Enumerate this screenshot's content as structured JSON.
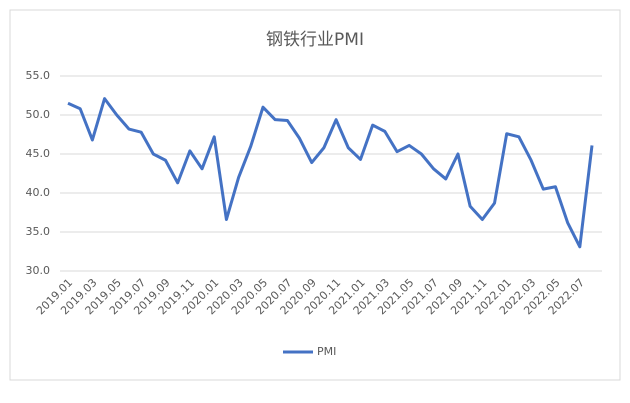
{
  "chart_data": {
    "type": "line",
    "title": "钢铁行业PMI",
    "categories": [
      "2019.01",
      null,
      "2019.03",
      null,
      "2019.05",
      null,
      "2019.07",
      null,
      "2019.09",
      null,
      "2019.11",
      null,
      "2020.01",
      null,
      "2020.03",
      null,
      "2020.05",
      null,
      "2020.07",
      null,
      "2020.09",
      null,
      "2020.11",
      null,
      "2021.01",
      null,
      "2021.03",
      null,
      "2021.05",
      null,
      "2021.07",
      null,
      "2021.09",
      null,
      "2021.11",
      null,
      "2022.01",
      null,
      "2022.03",
      null,
      "2022.05",
      null,
      "2022.07",
      null
    ],
    "series": [
      {
        "name": "PMI",
        "color": "#4472c4",
        "values": [
          51.5,
          50.8,
          46.8,
          52.1,
          50.0,
          48.2,
          47.8,
          45.0,
          44.2,
          41.3,
          45.4,
          43.1,
          47.2,
          36.6,
          42.0,
          46.0,
          51.0,
          49.4,
          49.3,
          47.0,
          43.9,
          45.8,
          49.4,
          45.8,
          44.3,
          48.7,
          47.9,
          45.3,
          46.1,
          45.0,
          43.1,
          41.8,
          45.0,
          38.3,
          36.6,
          38.7,
          47.6,
          47.2,
          44.2,
          40.5,
          40.8,
          36.2,
          33.1,
          46.1
        ]
      }
    ],
    "ylim": [
      30,
      55
    ],
    "yticks": [
      {
        "value": 30,
        "label": "30.0"
      },
      {
        "value": 35,
        "label": "35.0"
      },
      {
        "value": 40,
        "label": "40.0"
      },
      {
        "value": 45,
        "label": "45.0"
      },
      {
        "value": 50,
        "label": "50.0"
      },
      {
        "value": 55,
        "label": "55.0"
      }
    ],
    "grid": true,
    "legend": "bottom"
  }
}
